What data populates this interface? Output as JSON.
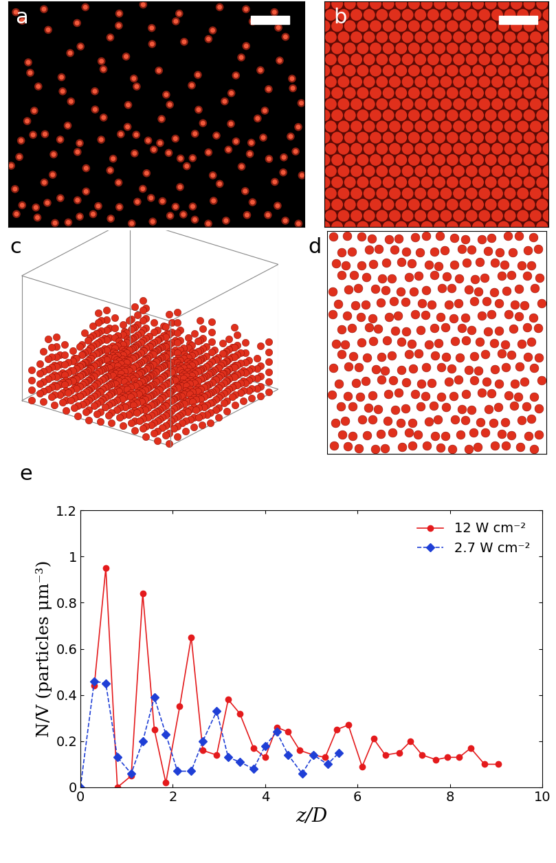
{
  "panels": [
    {
      "label": "a",
      "type": "image"
    },
    {
      "label": "b",
      "type": "image"
    },
    {
      "label": "c",
      "type": "image"
    },
    {
      "label": "d",
      "type": "image"
    },
    {
      "label": "e",
      "type": "line"
    }
  ],
  "chart_data": {
    "type": "line",
    "xlabel": "z/D",
    "ylabel": "N/V (particles μm⁻³)",
    "xlim": [
      0,
      10
    ],
    "xticks": [
      0,
      2,
      4,
      6,
      8,
      10
    ],
    "ylim": [
      0,
      1.2
    ],
    "yticks": [
      0,
      0.2,
      0.4,
      0.6,
      0.8,
      1,
      1.2
    ],
    "legend": "upper right",
    "series": [
      {
        "name": "12 W cm⁻²",
        "color": "#e41a1c",
        "marker": "circle",
        "line_style": "solid",
        "x": [
          0.3,
          0.55,
          0.8,
          1.1,
          1.35,
          1.6,
          1.85,
          2.15,
          2.4,
          2.65,
          2.95,
          3.2,
          3.45,
          3.75,
          4.0,
          4.25,
          4.5,
          4.75,
          5.05,
          5.3,
          5.55,
          5.8,
          6.1,
          6.35,
          6.6,
          6.9,
          7.15,
          7.4,
          7.7,
          7.95,
          8.2,
          8.45,
          8.75,
          9.05
        ],
        "values": [
          0.44,
          0.95,
          0.0,
          0.05,
          0.84,
          0.25,
          0.02,
          0.35,
          0.65,
          0.16,
          0.14,
          0.38,
          0.32,
          0.17,
          0.13,
          0.26,
          0.24,
          0.16,
          0.14,
          0.13,
          0.25,
          0.27,
          0.09,
          0.21,
          0.14,
          0.15,
          0.2,
          0.14,
          0.12,
          0.13,
          0.13,
          0.17,
          0.1,
          0.1
        ]
      },
      {
        "name": "2.7 W cm⁻²",
        "color": "#1f3fd6",
        "marker": "diamond",
        "line_style": "dashed",
        "x": [
          0,
          0.3,
          0.55,
          0.8,
          1.1,
          1.35,
          1.6,
          1.85,
          2.1,
          2.4,
          2.65,
          2.95,
          3.2,
          3.45,
          3.75,
          4.0,
          4.25,
          4.5,
          4.8,
          5.05,
          5.35,
          5.6
        ],
        "values": [
          0,
          0.46,
          0.45,
          0.13,
          0.06,
          0.2,
          0.39,
          0.23,
          0.07,
          0.07,
          0.2,
          0.33,
          0.13,
          0.11,
          0.08,
          0.18,
          0.24,
          0.14,
          0.06,
          0.14,
          0.1,
          0.15
        ]
      }
    ]
  }
}
